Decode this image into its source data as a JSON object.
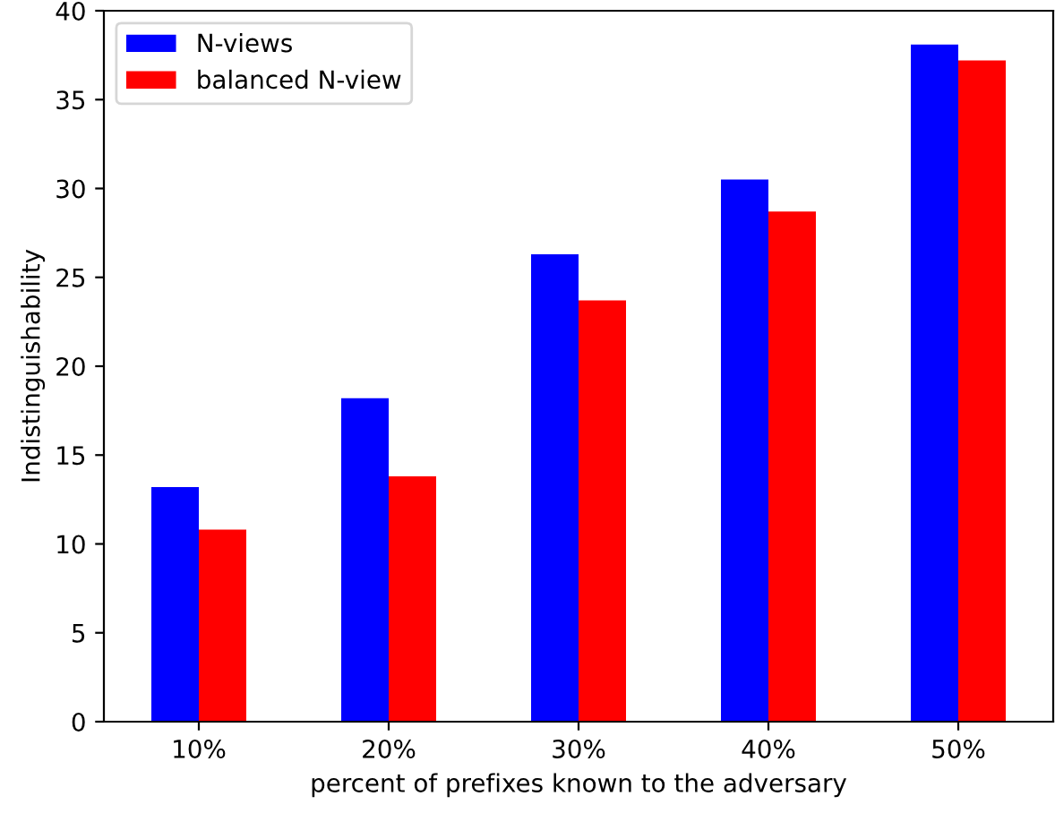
{
  "chart_data": {
    "type": "bar",
    "xlabel": "percent of prefixes known to the adversary",
    "ylabel": "Indistinguishability",
    "categories": [
      "10%",
      "20%",
      "30%",
      "40%",
      "50%"
    ],
    "series": [
      {
        "name": "N-views",
        "color": "#0000ff",
        "values": [
          13.2,
          18.2,
          26.3,
          30.5,
          38.1
        ]
      },
      {
        "name": "balanced N-view",
        "color": "#ff0000",
        "values": [
          10.8,
          13.8,
          23.7,
          28.7,
          37.2
        ]
      }
    ],
    "ylim": [
      0,
      40
    ],
    "yticks": [
      0,
      5,
      10,
      15,
      20,
      25,
      30,
      35,
      40
    ],
    "grid": false,
    "legend": "top left"
  }
}
